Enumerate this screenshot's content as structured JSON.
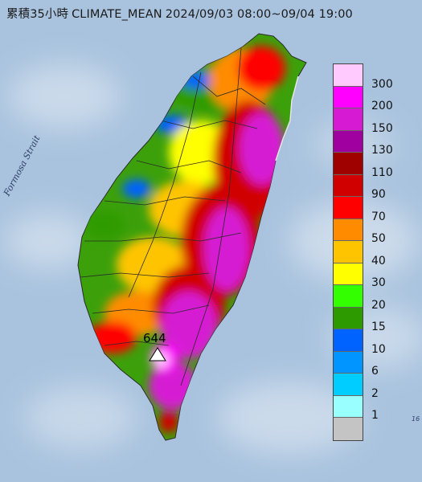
{
  "title": {
    "accum": "累積35小時",
    "model": "CLIMATE_MEAN",
    "period": "2024/09/03 08:00~09/04 19:00"
  },
  "sea_label": "Formosa Strait",
  "max_marker": {
    "value": "644",
    "icon": "triangle-marker-icon"
  },
  "edge_label": "16",
  "legend": {
    "labels": [
      "300",
      "200",
      "150",
      "130",
      "110",
      "90",
      "70",
      "50",
      "40",
      "30",
      "20",
      "15",
      "10",
      "6",
      "2",
      "1"
    ],
    "colors": [
      "#ffcbff",
      "#ff00ff",
      "#d61ad3",
      "#a100a1",
      "#9f0000",
      "#d10000",
      "#ff0000",
      "#ff8c00",
      "#ffc400",
      "#ffff00",
      "#33ff00",
      "#2d9b00",
      "#0062ff",
      "#0095ff",
      "#00cdff",
      "#99ffff",
      "#c4c4c4"
    ]
  },
  "colors": {
    "sea": "#a9c3de",
    "land_base": "#3ca00a"
  }
}
